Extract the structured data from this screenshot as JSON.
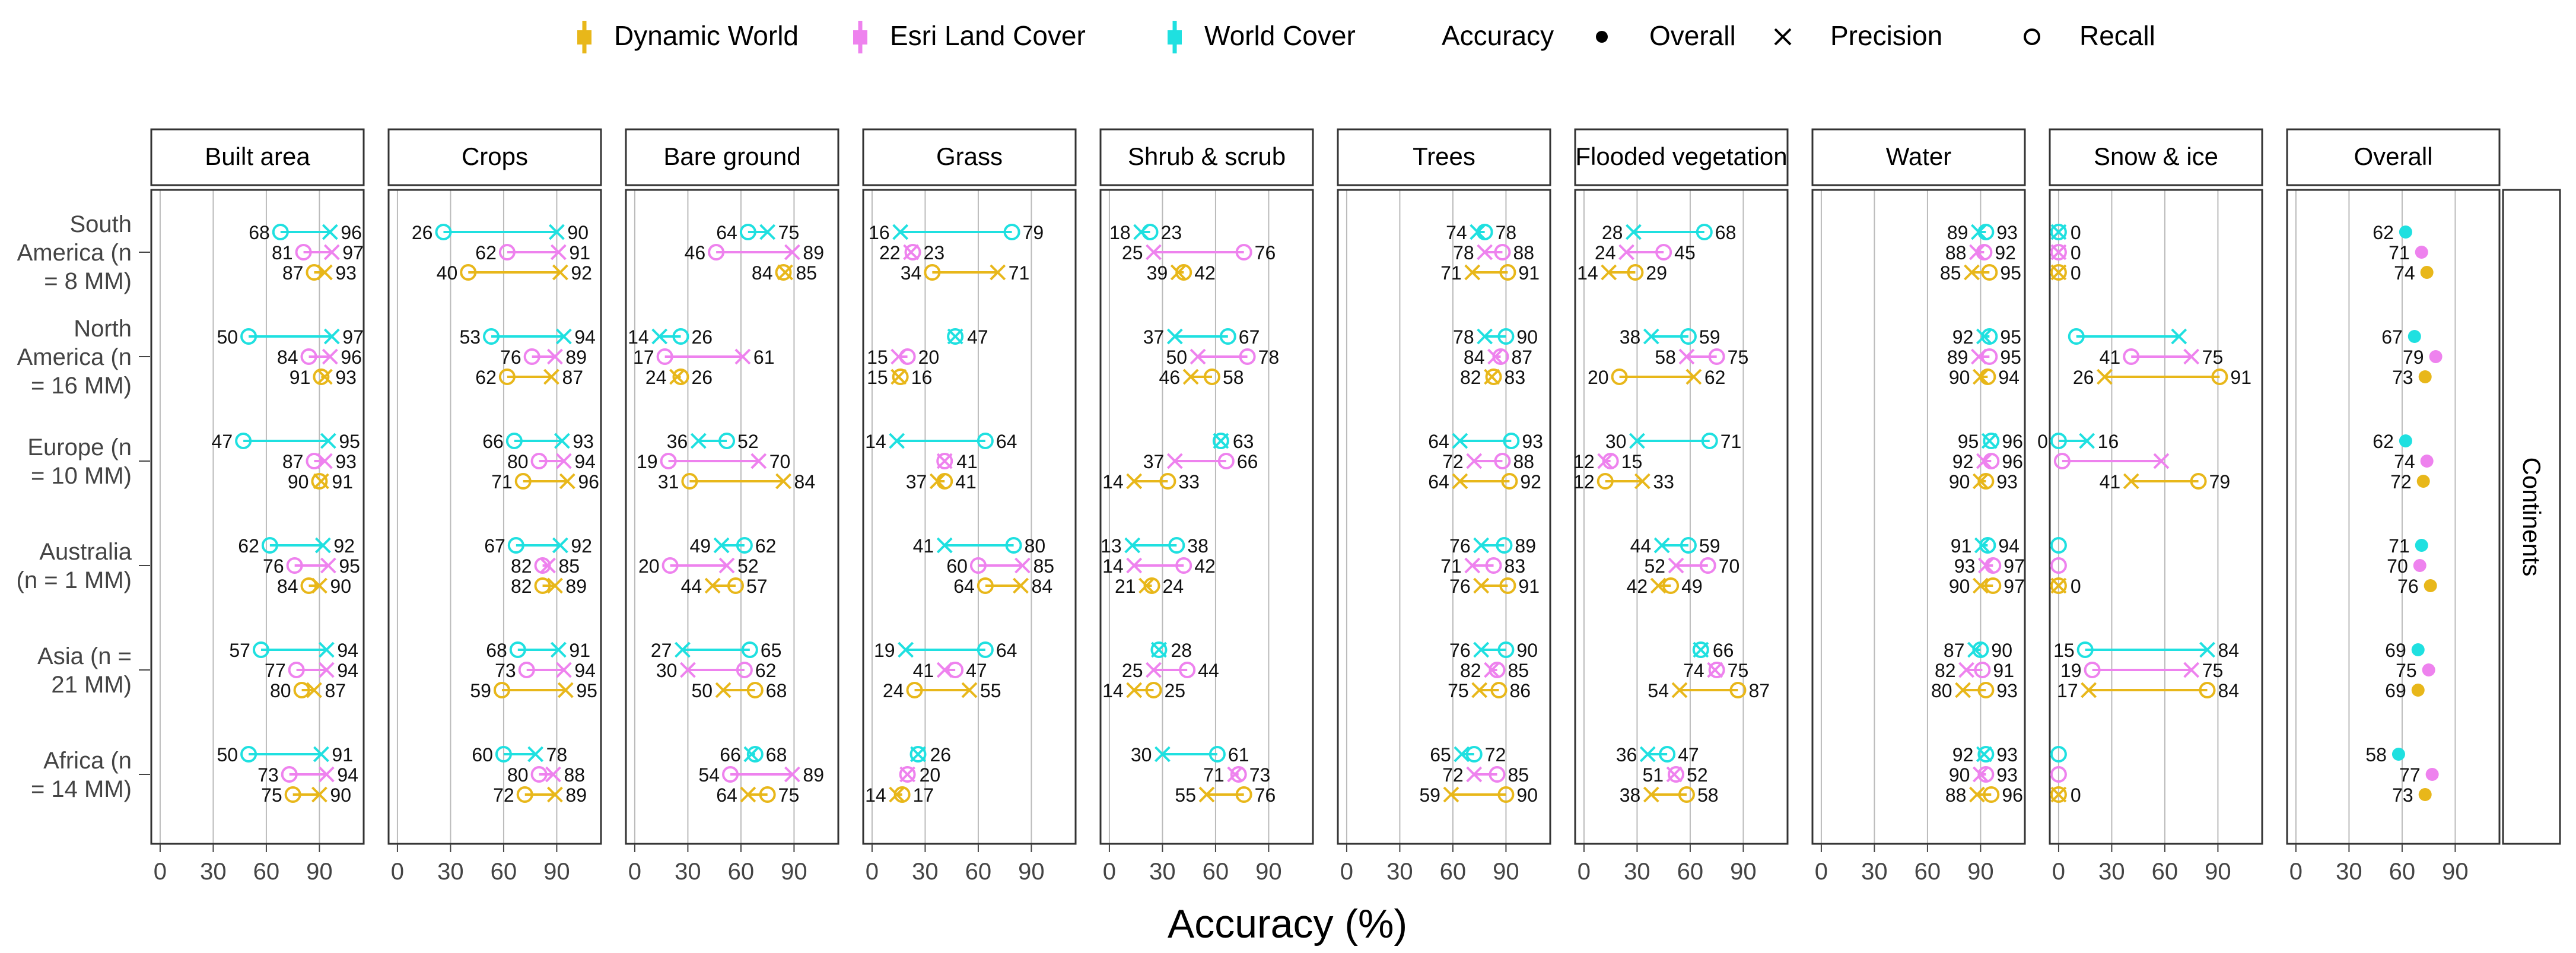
{
  "chart_data": {
    "type": "dot-range",
    "xlabel": "Accuracy (%)",
    "xticks": [
      0,
      30,
      60,
      90
    ],
    "xlim": [
      -5,
      115
    ],
    "facet_label": "Continents",
    "legend": {
      "series": [
        {
          "key": "dw",
          "name": "Dynamic World",
          "color": "#E8B71A"
        },
        {
          "key": "esri",
          "name": "Esri Land Cover",
          "color": "#EE82EE"
        },
        {
          "key": "wc",
          "name": "World Cover",
          "color": "#1FE0E0"
        }
      ],
      "metric_title": "Accuracy",
      "metrics": [
        "Overall",
        "Precision",
        "Recall"
      ]
    },
    "continents": [
      {
        "name": "South America (n = 8 MM)",
        "lines": [
          "South",
          "America (n",
          "= 8 MM)"
        ]
      },
      {
        "name": "North America (n = 16 MM)",
        "lines": [
          "North",
          "America (n",
          "= 16 MM)"
        ]
      },
      {
        "name": "Europe (n = 10 MM)",
        "lines": [
          "Europe (n",
          "= 10 MM)"
        ]
      },
      {
        "name": "Australia (n = 1 MM)",
        "lines": [
          "Australia",
          "(n = 1 MM)"
        ]
      },
      {
        "name": "Asia (n = 21 MM)",
        "lines": [
          "Asia (n =",
          "21 MM)"
        ]
      },
      {
        "name": "Africa (n = 14 MM)",
        "lines": [
          "Africa (n",
          "= 14 MM)"
        ]
      }
    ],
    "classes": [
      "Built area",
      "Crops",
      "Bare ground",
      "Grass",
      "Shrub & scrub",
      "Trees",
      "Flooded vegetation",
      "Water",
      "Snow & ice"
    ],
    "series_order": [
      "wc",
      "esri",
      "dw"
    ],
    "class_values": [
      [
        {
          "wc": [
            96,
            68
          ],
          "esri": [
            97,
            81
          ],
          "dw": [
            93,
            87
          ]
        },
        {
          "wc": [
            97,
            50
          ],
          "esri": [
            96,
            84
          ],
          "dw": [
            93,
            91
          ]
        },
        {
          "wc": [
            95,
            47
          ],
          "esri": [
            93,
            87
          ],
          "dw": [
            91,
            90
          ]
        },
        {
          "wc": [
            92,
            62
          ],
          "esri": [
            95,
            76
          ],
          "dw": [
            90,
            84
          ]
        },
        {
          "wc": [
            94,
            57
          ],
          "esri": [
            94,
            77
          ],
          "dw": [
            87,
            80
          ]
        },
        {
          "wc": [
            91,
            50
          ],
          "esri": [
            94,
            73
          ],
          "dw": [
            90,
            75
          ]
        }
      ],
      [
        {
          "wc": [
            90,
            26
          ],
          "esri": [
            91,
            62
          ],
          "dw": [
            92,
            40
          ]
        },
        {
          "wc": [
            94,
            53
          ],
          "esri": [
            89,
            76
          ],
          "dw": [
            87,
            62
          ]
        },
        {
          "wc": [
            93,
            66
          ],
          "esri": [
            94,
            80
          ],
          "dw": [
            96,
            71
          ]
        },
        {
          "wc": [
            92,
            67
          ],
          "esri": [
            85,
            82
          ],
          "dw": [
            89,
            82
          ]
        },
        {
          "wc": [
            91,
            68
          ],
          "esri": [
            94,
            73
          ],
          "dw": [
            95,
            59
          ]
        },
        {
          "wc": [
            78,
            60
          ],
          "esri": [
            88,
            80
          ],
          "dw": [
            89,
            72
          ]
        }
      ],
      [
        {
          "wc": [
            75,
            64
          ],
          "esri": [
            89,
            46
          ],
          "dw": [
            85,
            84
          ]
        },
        {
          "wc": [
            14,
            26
          ],
          "esri": [
            61,
            17
          ],
          "dw": [
            24,
            26
          ]
        },
        {
          "wc": [
            36,
            52
          ],
          "esri": [
            70,
            19
          ],
          "dw": [
            84,
            31
          ]
        },
        {
          "wc": [
            49,
            62
          ],
          "esri": [
            52,
            20
          ],
          "dw": [
            44,
            57
          ]
        },
        {
          "wc": [
            27,
            65
          ],
          "esri": [
            30,
            62
          ],
          "dw": [
            50,
            68
          ]
        },
        {
          "wc": [
            66,
            68
          ],
          "esri": [
            89,
            54
          ],
          "dw": [
            64,
            75
          ]
        }
      ],
      [
        {
          "wc": [
            16,
            79
          ],
          "esri": [
            22,
            23
          ],
          "dw": [
            71,
            34
          ]
        },
        {
          "wc": [
            47,
            47
          ],
          "esri": [
            15,
            20
          ],
          "dw": [
            15,
            16
          ]
        },
        {
          "wc": [
            14,
            64
          ],
          "esri": [
            41,
            41
          ],
          "dw": [
            37,
            41
          ]
        },
        {
          "wc": [
            41,
            80
          ],
          "esri": [
            85,
            60
          ],
          "dw": [
            84,
            64
          ]
        },
        {
          "wc": [
            19,
            64
          ],
          "esri": [
            41,
            47
          ],
          "dw": [
            55,
            24
          ]
        },
        {
          "wc": [
            26,
            26
          ],
          "esri": [
            20,
            20
          ],
          "dw": [
            14,
            17
          ]
        }
      ],
      [
        {
          "wc": [
            18,
            23
          ],
          "esri": [
            25,
            76
          ],
          "dw": [
            39,
            42
          ]
        },
        {
          "wc": [
            37,
            67
          ],
          "esri": [
            50,
            78
          ],
          "dw": [
            46,
            58
          ]
        },
        {
          "wc": [
            63,
            63
          ],
          "esri": [
            37,
            66
          ],
          "dw": [
            14,
            33
          ]
        },
        {
          "wc": [
            13,
            38
          ],
          "esri": [
            14,
            42
          ],
          "dw": [
            21,
            24
          ]
        },
        {
          "wc": [
            28,
            28
          ],
          "esri": [
            25,
            44
          ],
          "dw": [
            14,
            25
          ]
        },
        {
          "wc": [
            30,
            61
          ],
          "esri": [
            71,
            73
          ],
          "dw": [
            55,
            76
          ]
        }
      ],
      [
        {
          "wc": [
            74,
            78
          ],
          "esri": [
            78,
            88
          ],
          "dw": [
            71,
            91
          ]
        },
        {
          "wc": [
            78,
            90
          ],
          "esri": [
            84,
            87
          ],
          "dw": [
            82,
            83
          ]
        },
        {
          "wc": [
            64,
            93
          ],
          "esri": [
            72,
            88
          ],
          "dw": [
            64,
            92
          ]
        },
        {
          "wc": [
            76,
            89
          ],
          "esri": [
            71,
            83
          ],
          "dw": [
            76,
            91
          ]
        },
        {
          "wc": [
            76,
            90
          ],
          "esri": [
            82,
            85
          ],
          "dw": [
            75,
            86
          ]
        },
        {
          "wc": [
            65,
            72
          ],
          "esri": [
            72,
            85
          ],
          "dw": [
            59,
            90
          ]
        }
      ],
      [
        {
          "wc": [
            28,
            68
          ],
          "esri": [
            24,
            45
          ],
          "dw": [
            14,
            29
          ]
        },
        {
          "wc": [
            38,
            59
          ],
          "esri": [
            58,
            75
          ],
          "dw": [
            62,
            20
          ]
        },
        {
          "wc": [
            30,
            71
          ],
          "esri": [
            12,
            15
          ],
          "dw": [
            33,
            12
          ]
        },
        {
          "wc": [
            44,
            59
          ],
          "esri": [
            52,
            70
          ],
          "dw": [
            42,
            49
          ]
        },
        {
          "wc": [
            66,
            66
          ],
          "esri": [
            74,
            75
          ],
          "dw": [
            54,
            87
          ]
        },
        {
          "wc": [
            36,
            47
          ],
          "esri": [
            51,
            52
          ],
          "dw": [
            38,
            58
          ]
        }
      ],
      [
        {
          "wc": [
            89,
            93
          ],
          "esri": [
            88,
            92
          ],
          "dw": [
            85,
            95
          ]
        },
        {
          "wc": [
            92,
            95
          ],
          "esri": [
            89,
            95
          ],
          "dw": [
            90,
            94
          ]
        },
        {
          "wc": [
            95,
            96
          ],
          "esri": [
            92,
            96
          ],
          "dw": [
            90,
            93
          ]
        },
        {
          "wc": [
            91,
            94
          ],
          "esri": [
            93,
            97
          ],
          "dw": [
            90,
            97
          ]
        },
        {
          "wc": [
            87,
            90
          ],
          "esri": [
            82,
            91
          ],
          "dw": [
            80,
            93
          ]
        },
        {
          "wc": [
            92,
            93
          ],
          "esri": [
            90,
            93
          ],
          "dw": [
            88,
            96
          ]
        }
      ],
      [
        {
          "wc": [
            0,
            0
          ],
          "esri": [
            0,
            0
          ],
          "dw": [
            0,
            0
          ]
        },
        {
          "wc": [
            68,
            10
          ],
          "esri": [
            75,
            41
          ],
          "dw": [
            26,
            91
          ]
        },
        {
          "wc": [
            16,
            0
          ],
          "esri": [
            58,
            2
          ],
          "dw": [
            41,
            79
          ]
        },
        {
          "wc": [
            null,
            0
          ],
          "esri": [
            null,
            0
          ],
          "dw": [
            0,
            0
          ]
        },
        {
          "wc": [
            84,
            15
          ],
          "esri": [
            75,
            19
          ],
          "dw": [
            17,
            84
          ]
        },
        {
          "wc": [
            null,
            0
          ],
          "esri": [
            null,
            0
          ],
          "dw": [
            0,
            0
          ]
        }
      ]
    ],
    "label_hidden": [
      [
        [],
        [],
        [],
        [],
        [],
        []
      ],
      [
        [],
        [],
        [],
        [],
        [],
        []
      ],
      [
        [],
        [],
        [],
        [],
        [],
        []
      ],
      [
        [],
        [],
        [],
        [],
        [],
        []
      ],
      [
        [],
        [],
        [],
        [],
        [],
        []
      ],
      [
        [],
        [],
        [],
        [],
        [],
        []
      ],
      [
        [],
        [],
        [],
        [],
        [],
        []
      ],
      [
        [],
        [],
        [],
        [],
        [],
        []
      ],
      [
        [],
        [
          "wc"
        ],
        [
          "esri"
        ],
        [
          "wc",
          "esri"
        ],
        [],
        [
          "wc",
          "esri"
        ]
      ]
    ],
    "overall_title": "Overall",
    "overall": [
      {
        "wc": 62,
        "esri": 71,
        "dw": 74
      },
      {
        "wc": 67,
        "esri": 79,
        "dw": 73
      },
      {
        "wc": 62,
        "esri": 74,
        "dw": 72
      },
      {
        "wc": 71,
        "esri": 70,
        "dw": 76
      },
      {
        "wc": 69,
        "esri": 75,
        "dw": 69
      },
      {
        "wc": 58,
        "esri": 77,
        "dw": 73
      }
    ]
  }
}
